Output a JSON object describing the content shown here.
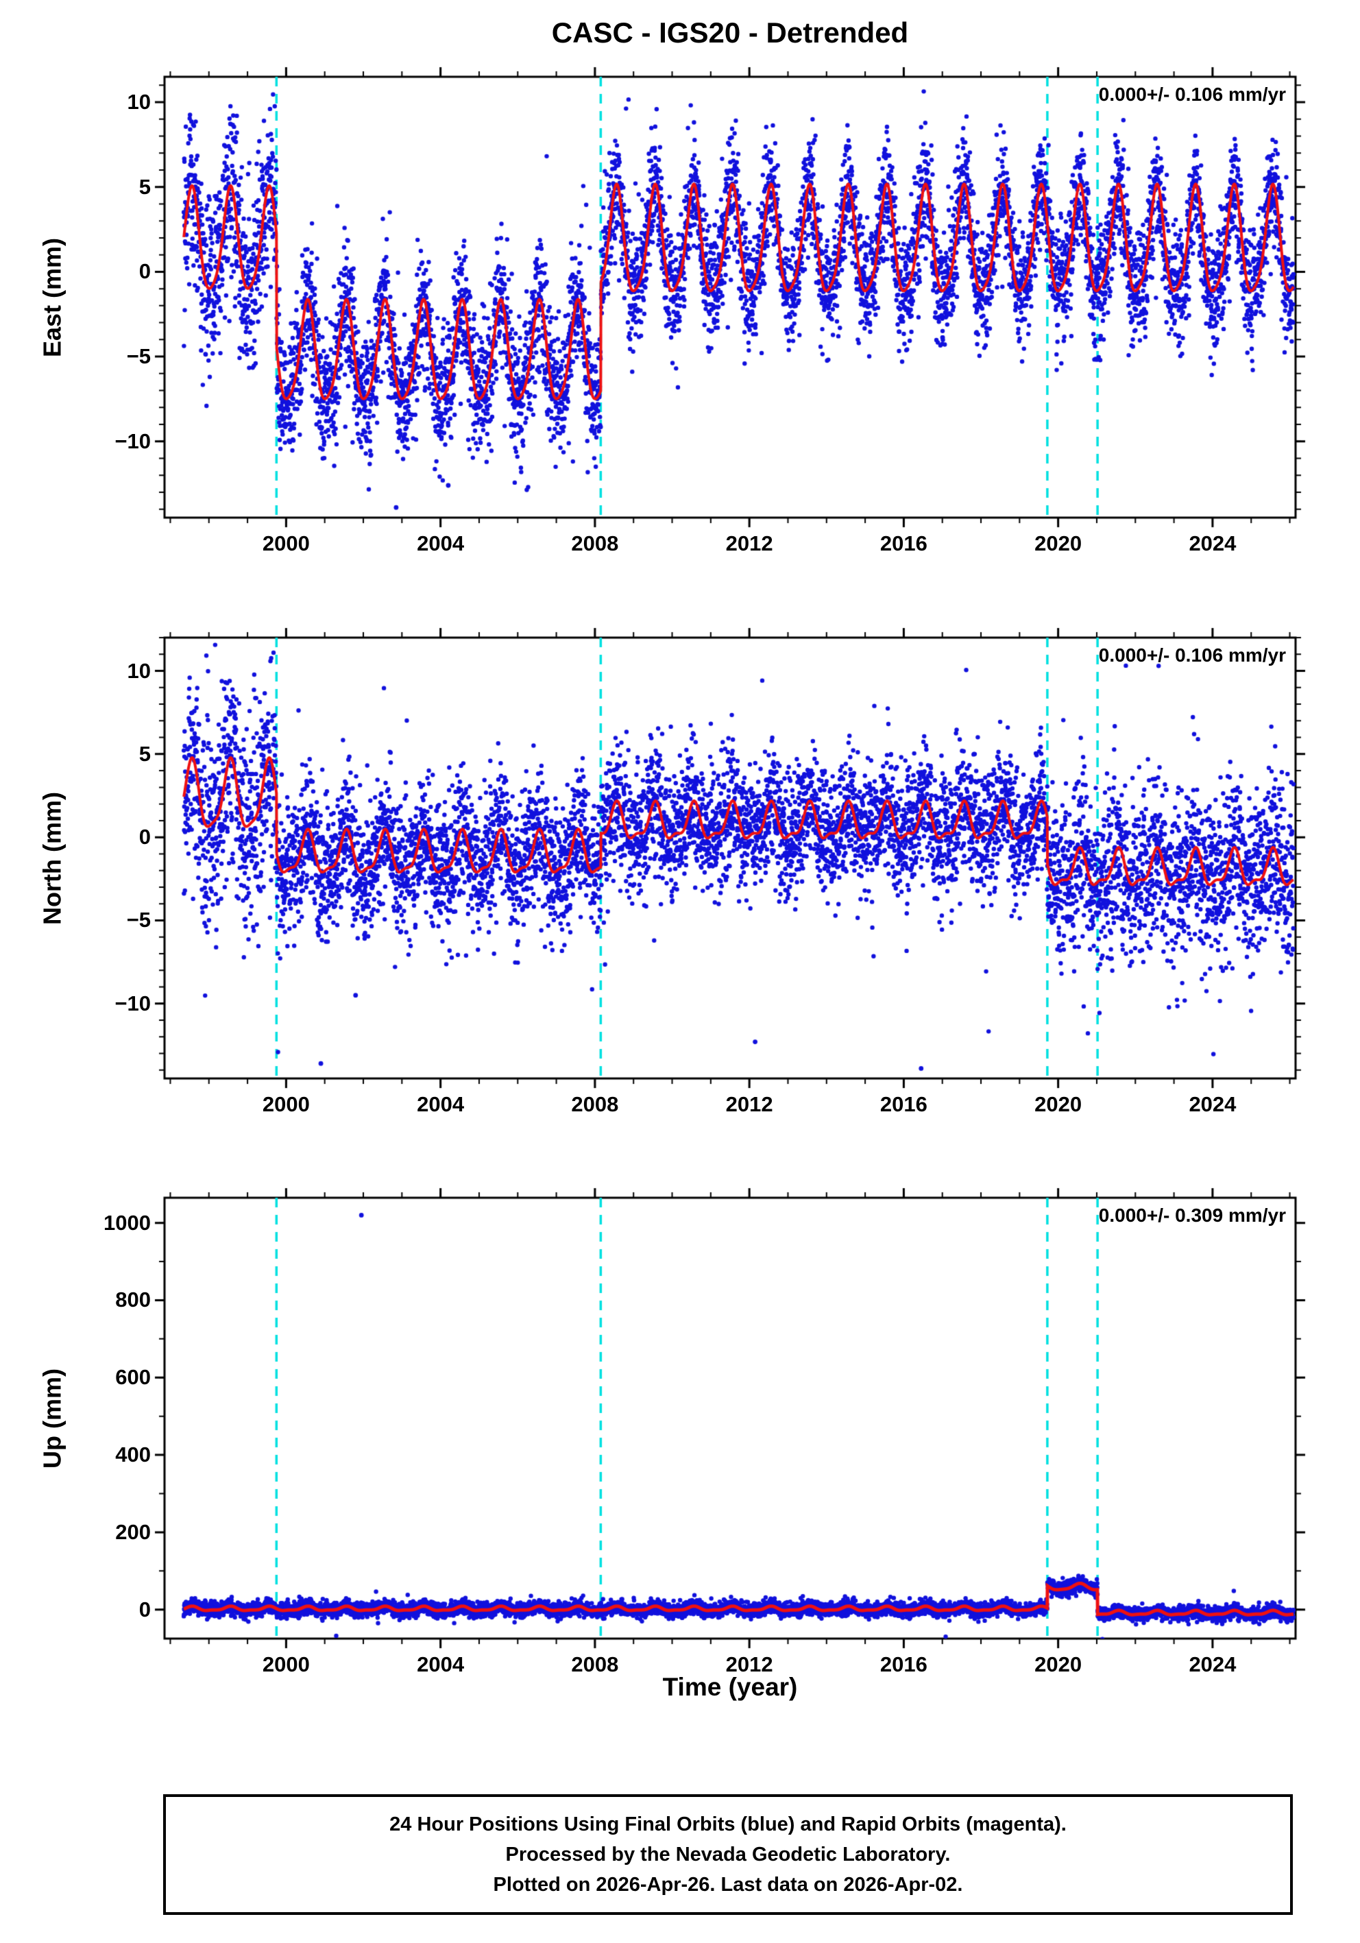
{
  "title": "CASC - IGS20 - Detrended",
  "xlabel": "Time (year)",
  "footer": {
    "lines": [
      "24 Hour Positions Using Final Orbits (blue) and Rapid Orbits (magenta).",
      "Processed by the Nevada Geodetic Laboratory.",
      "Plotted on 2026-Apr-26. Last data on 2026-Apr-02."
    ]
  },
  "colors": {
    "points": "#1111dd",
    "model": "#ee1111",
    "events": "#00e0e0",
    "frame": "#000000"
  },
  "chart_data": [
    {
      "type": "scatter",
      "name": "east",
      "ylabel": "East (mm)",
      "annotation": "0.000+/- 0.106 mm/yr",
      "xlim": [
        1996.85,
        2026.15
      ],
      "ylim": [
        -14.5,
        11.5
      ],
      "xticks": [
        2000,
        2004,
        2008,
        2012,
        2016,
        2020,
        2024
      ],
      "yticks": [
        -10,
        -5,
        0,
        5,
        10
      ],
      "x_minor": 1,
      "y_minor": 1,
      "events": [
        1999.75,
        2008.15,
        2019.72,
        2021.02
      ],
      "series_start": 1997.35,
      "series_end": 2026.1,
      "annual_phase": 0.55,
      "semi_phase": 0.08,
      "segments": [
        {
          "t0": 1997.35,
          "t1": 1999.75,
          "offset": 1.6,
          "annual": 3.0,
          "semi": 0.5,
          "noise": 2.6
        },
        {
          "t0": 1999.75,
          "t1": 2008.15,
          "offset": -5.0,
          "annual": 2.9,
          "semi": 0.5,
          "noise": 1.9
        },
        {
          "t0": 2008.15,
          "t1": 2026.1,
          "offset": 1.5,
          "annual": 3.1,
          "semi": 0.6,
          "noise": 1.7
        }
      ],
      "outliers": [
        [
          2002.85,
          -13.9
        ],
        [
          2004.2,
          -12.6
        ]
      ],
      "outlier_rate": 0.02,
      "outlier_scale": 2.2,
      "model_width": 4,
      "seed": 7
    },
    {
      "type": "scatter",
      "name": "north",
      "ylabel": "North (mm)",
      "annotation": "0.000+/- 0.106 mm/yr",
      "xlim": [
        1996.85,
        2026.15
      ],
      "ylim": [
        -14.5,
        12.0
      ],
      "xticks": [
        2000,
        2004,
        2008,
        2012,
        2016,
        2020,
        2024
      ],
      "yticks": [
        -10,
        -5,
        0,
        5,
        10
      ],
      "x_minor": 1,
      "y_minor": 1,
      "events": [
        1999.75,
        2008.15,
        2019.72,
        2021.02
      ],
      "series_start": 1997.35,
      "series_end": 2026.1,
      "annual_phase": 0.55,
      "semi_phase": 0.08,
      "segments": [
        {
          "t0": 1997.35,
          "t1": 1999.75,
          "offset": 2.3,
          "annual": 2.0,
          "semi": 0.5,
          "noise": 3.0
        },
        {
          "t0": 1999.75,
          "t1": 2008.15,
          "offset": -1.1,
          "annual": 1.2,
          "semi": 0.4,
          "noise": 1.9
        },
        {
          "t0": 2008.15,
          "t1": 2019.72,
          "offset": 0.8,
          "annual": 1.0,
          "semi": 0.4,
          "noise": 1.9
        },
        {
          "t0": 2019.72,
          "t1": 2026.1,
          "offset": -2.0,
          "annual": 1.0,
          "semi": 0.4,
          "noise": 2.4
        }
      ],
      "outliers": [
        [
          2000.9,
          -13.6
        ],
        [
          2016.45,
          -13.9
        ],
        [
          2012.15,
          -12.3
        ],
        [
          2001.8,
          -9.5
        ]
      ],
      "outlier_rate": 0.03,
      "outlier_scale": 2.6,
      "model_width": 4,
      "seed": 13
    },
    {
      "type": "scatter",
      "name": "up",
      "ylabel": "Up (mm)",
      "annotation": "0.000+/- 0.309 mm/yr",
      "xlim": [
        1996.85,
        2026.15
      ],
      "ylim": [
        -75,
        1065
      ],
      "xticks": [
        2000,
        2004,
        2008,
        2012,
        2016,
        2020,
        2024
      ],
      "yticks": [
        0,
        200,
        400,
        600,
        800,
        1000
      ],
      "x_minor": 1,
      "y_minor": 100,
      "events": [
        1999.75,
        2008.15,
        2019.72,
        2021.02
      ],
      "series_start": 1997.35,
      "series_end": 2026.1,
      "annual_phase": 0.55,
      "semi_phase": 0.08,
      "segments": [
        {
          "t0": 1997.35,
          "t1": 2019.72,
          "offset": 2,
          "annual": 5,
          "semi": 2,
          "noise": 9
        },
        {
          "t0": 2019.72,
          "t1": 2021.02,
          "offset": 58,
          "annual": 8,
          "semi": 2,
          "noise": 9
        },
        {
          "t0": 2021.02,
          "t1": 2026.1,
          "offset": -9,
          "annual": 5,
          "semi": 2,
          "noise": 9
        }
      ],
      "outliers": [
        [
          2001.95,
          1020
        ]
      ],
      "outlier_rate": 0.002,
      "outlier_scale": 3,
      "model_width": 5,
      "seed": 21
    }
  ]
}
